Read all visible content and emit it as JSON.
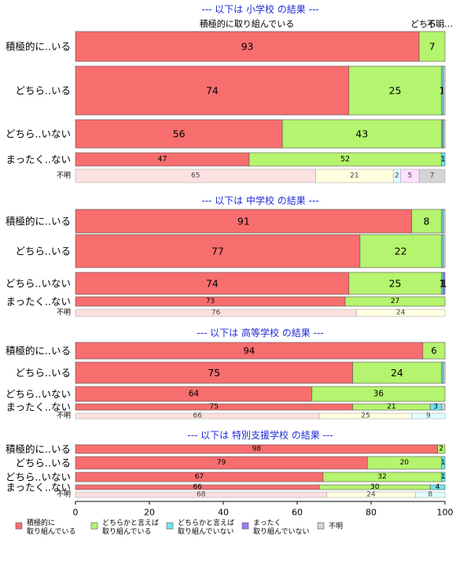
{
  "chart_data": {
    "type": "bar",
    "orientation": "horizontal",
    "stacked": true,
    "xlim": [
      0,
      100
    ],
    "x_ticks": [
      "0",
      "20",
      "40",
      "60",
      "80",
      "100"
    ],
    "series": [
      {
        "name": "積極的に\n取り組んでいる",
        "color": "#f86e6e"
      },
      {
        "name": "どちらかと言えば\n取り組んでいる",
        "color": "#b4f46e"
      },
      {
        "name": "どちらかと言えば\n取り組んでいない",
        "color": "#6ee8ec"
      },
      {
        "name": "まったく\n取り組んでいない",
        "color": "#9b7bee"
      },
      {
        "name": "不明",
        "color": "#d4d4d4"
      }
    ],
    "top_labels": [
      "積極的に取り組んでいる",
      "どちら…",
      "不明…"
    ],
    "panels": [
      {
        "title": "--- 以下は 小学校 の結果 ---",
        "rows": [
          {
            "label": "積極的に..いる",
            "values": [
              93,
              7,
              0,
              0,
              0
            ],
            "value_labels": [
              "93",
              "7",
              "",
              "",
              ""
            ]
          },
          {
            "label": "どちら..いる",
            "values": [
              74,
              25,
              0.5,
              0,
              0.5
            ],
            "value_labels": [
              "74",
              "25",
              "1",
              "",
              ""
            ]
          },
          {
            "label": "どちら..いない",
            "values": [
              56,
              43,
              0.4,
              0.1,
              0.5
            ],
            "value_labels": [
              "56",
              "43",
              "",
              "",
              ""
            ]
          },
          {
            "label": "まったく..ない",
            "values": [
              47,
              52,
              1,
              0,
              0
            ],
            "value_labels": [
              "47",
              "52",
              "1",
              "",
              ""
            ]
          },
          {
            "label": "不明",
            "values": [
              65,
              21,
              2,
              5,
              7
            ],
            "value_labels": [
              "65",
              "21",
              "2",
              "5",
              "7"
            ],
            "light": true
          }
        ]
      },
      {
        "title": "--- 以下は 中学校 の結果 ---",
        "rows": [
          {
            "label": "積極的に..いる",
            "values": [
              91,
              8,
              0.5,
              0,
              0.5
            ],
            "value_labels": [
              "91",
              "8",
              "",
              "",
              ""
            ]
          },
          {
            "label": "どちら..いる",
            "values": [
              77,
              22,
              0.5,
              0,
              0.5
            ],
            "value_labels": [
              "77",
              "22",
              "",
              "",
              ""
            ]
          },
          {
            "label": "どちら..いない",
            "values": [
              74,
              25,
              0.5,
              0.5,
              0
            ],
            "value_labels": [
              "74",
              "25",
              "1",
              "1",
              ""
            ]
          },
          {
            "label": "まったく..ない",
            "values": [
              73,
              27,
              0,
              0,
              0
            ],
            "value_labels": [
              "73",
              "27",
              "",
              "",
              ""
            ]
          },
          {
            "label": "不明",
            "values": [
              76,
              24,
              0,
              0,
              0
            ],
            "value_labels": [
              "76",
              "24",
              "",
              "",
              ""
            ],
            "light": true
          }
        ]
      },
      {
        "title": "--- 以下は 高等学校 の結果 ---",
        "rows": [
          {
            "label": "積極的に..いる",
            "values": [
              94,
              6,
              0,
              0,
              0
            ],
            "value_labels": [
              "94",
              "6",
              "",
              "",
              ""
            ]
          },
          {
            "label": "どちら..いる",
            "values": [
              75,
              24,
              0.5,
              0,
              0.5
            ],
            "value_labels": [
              "75",
              "24",
              "",
              "",
              ""
            ]
          },
          {
            "label": "どちら..いない",
            "values": [
              64,
              36,
              0,
              0,
              0
            ],
            "value_labels": [
              "64",
              "36",
              "",
              "",
              ""
            ]
          },
          {
            "label": "まったく..ない",
            "values": [
              75,
              21,
              3,
              0,
              1
            ],
            "value_labels": [
              "75",
              "21",
              "3",
              "",
              ""
            ]
          },
          {
            "label": "不明",
            "values": [
              66,
              25,
              9,
              0,
              0
            ],
            "value_labels": [
              "66",
              "25",
              "9",
              "",
              ""
            ],
            "light": true
          }
        ]
      },
      {
        "title": "--- 以下は 特別支援学校 の結果 ---",
        "rows": [
          {
            "label": "積極的に..いる",
            "values": [
              98,
              2,
              0,
              0,
              0
            ],
            "value_labels": [
              "98",
              "2",
              "",
              "",
              ""
            ]
          },
          {
            "label": "どちら..いる",
            "values": [
              79,
              20,
              1,
              0,
              0
            ],
            "value_labels": [
              "79",
              "20",
              "1",
              "",
              ""
            ]
          },
          {
            "label": "どちら..いない",
            "values": [
              67,
              32,
              1,
              0,
              0
            ],
            "value_labels": [
              "67",
              "32",
              "1",
              "",
              ""
            ]
          },
          {
            "label": "まったく..ない",
            "values": [
              66,
              30,
              4,
              0,
              0
            ],
            "value_labels": [
              "66",
              "30",
              "4",
              "",
              ""
            ]
          },
          {
            "label": "不明",
            "values": [
              68,
              24,
              8,
              0,
              0
            ],
            "value_labels": [
              "68",
              "24",
              "8",
              "",
              ""
            ],
            "light": true
          }
        ]
      }
    ]
  }
}
